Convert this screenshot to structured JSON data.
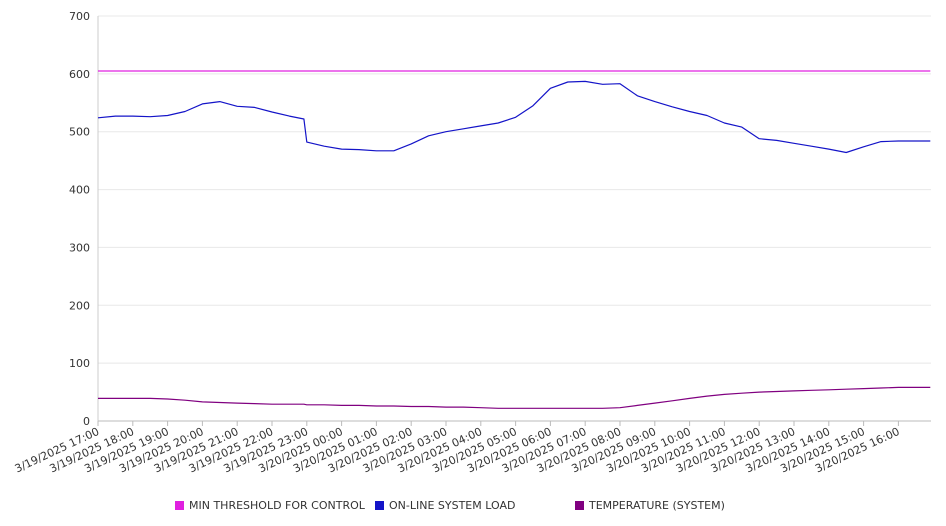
{
  "chart_data": {
    "type": "line",
    "title": "",
    "xlabel": "",
    "ylabel": "",
    "ylim": [
      0,
      700
    ],
    "yticks": [
      0,
      100,
      200,
      300,
      400,
      500,
      600,
      700
    ],
    "grid": true,
    "legend_placement": "bottom",
    "x_tick_labels": [
      "3/19/2025 17:00",
      "3/19/2025 18:00",
      "3/19/2025 19:00",
      "3/19/2025 20:00",
      "3/19/2025 21:00",
      "3/19/2025 22:00",
      "3/19/2025 23:00",
      "3/20/2025 00:00",
      "3/20/2025 01:00",
      "3/20/2025 02:00",
      "3/20/2025 03:00",
      "3/20/2025 04:00",
      "3/20/2025 05:00",
      "3/20/2025 06:00",
      "3/20/2025 07:00",
      "3/20/2025 08:00",
      "3/20/2025 09:00",
      "3/20/2025 10:00",
      "3/20/2025 11:00",
      "3/20/2025 12:00",
      "3/20/2025 13:00",
      "3/20/2025 14:00",
      "3/20/2025 15:00",
      "3/20/2025 16:00"
    ],
    "x": [
      "3/19/2025 17:00",
      "3/19/2025 17:30",
      "3/19/2025 18:00",
      "3/19/2025 18:30",
      "3/19/2025 19:00",
      "3/19/2025 19:30",
      "3/19/2025 20:00",
      "3/19/2025 20:30",
      "3/19/2025 21:00",
      "3/19/2025 21:30",
      "3/19/2025 22:00",
      "3/19/2025 22:30",
      "3/19/2025 22:55",
      "3/19/2025 23:00",
      "3/19/2025 23:30",
      "3/20/2025 00:00",
      "3/20/2025 00:30",
      "3/20/2025 01:00",
      "3/20/2025 01:30",
      "3/20/2025 02:00",
      "3/20/2025 02:30",
      "3/20/2025 03:00",
      "3/20/2025 03:30",
      "3/20/2025 04:00",
      "3/20/2025 04:30",
      "3/20/2025 05:00",
      "3/20/2025 05:30",
      "3/20/2025 06:00",
      "3/20/2025 06:30",
      "3/20/2025 07:00",
      "3/20/2025 07:30",
      "3/20/2025 08:00",
      "3/20/2025 08:30",
      "3/20/2025 09:00",
      "3/20/2025 09:30",
      "3/20/2025 10:00",
      "3/20/2025 10:30",
      "3/20/2025 11:00",
      "3/20/2025 11:30",
      "3/20/2025 12:00",
      "3/20/2025 12:30",
      "3/20/2025 13:00",
      "3/20/2025 13:30",
      "3/20/2025 14:00",
      "3/20/2025 14:30",
      "3/20/2025 15:00",
      "3/20/2025 15:30",
      "3/20/2025 16:00",
      "3/20/2025 16:30",
      "3/20/2025 16:55"
    ],
    "series": [
      {
        "name": "MIN THRESHOLD FOR CONTROL",
        "color": "#e020e0",
        "values": [
          605,
          605,
          605,
          605,
          605,
          605,
          605,
          605,
          605,
          605,
          605,
          605,
          605,
          605,
          605,
          605,
          605,
          605,
          605,
          605,
          605,
          605,
          605,
          605,
          605,
          605,
          605,
          605,
          605,
          605,
          605,
          605,
          605,
          605,
          605,
          605,
          605,
          605,
          605,
          605,
          605,
          605,
          605,
          605,
          605,
          605,
          605,
          605,
          605,
          605
        ]
      },
      {
        "name": "ON-LINE SYSTEM LOAD",
        "color": "#1414c8",
        "values": [
          524,
          527,
          527,
          526,
          528,
          535,
          548,
          552,
          544,
          542,
          534,
          527,
          522,
          482,
          475,
          470,
          469,
          467,
          467,
          479,
          493,
          500,
          505,
          510,
          515,
          525,
          545,
          575,
          586,
          587,
          582,
          583,
          562,
          552,
          543,
          535,
          528,
          515,
          508,
          488,
          485,
          480,
          475,
          470,
          464,
          474,
          483,
          484,
          484,
          484
        ]
      },
      {
        "name": "TEMPERATURE (SYSTEM)",
        "color": "#800080",
        "values": [
          39,
          39,
          39,
          39,
          38,
          36,
          33,
          32,
          31,
          30,
          29,
          29,
          29,
          28,
          28,
          27,
          27,
          26,
          26,
          25,
          25,
          24,
          24,
          23,
          22,
          22,
          22,
          22,
          22,
          22,
          22,
          23,
          27,
          31,
          35,
          39,
          43,
          46,
          48,
          50,
          51,
          52,
          53,
          54,
          55,
          56,
          57,
          58,
          58,
          58
        ]
      }
    ]
  }
}
